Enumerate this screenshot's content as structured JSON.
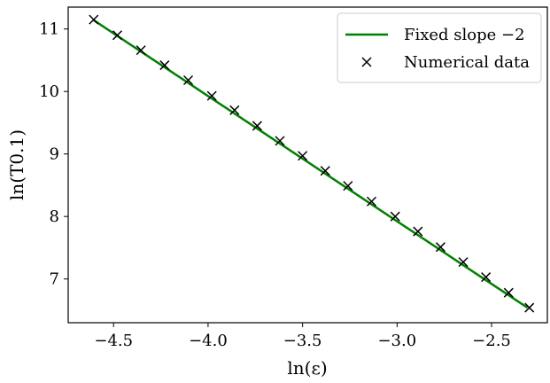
{
  "chart_data": {
    "type": "line",
    "title": "",
    "xlabel": "ln(ε)",
    "ylabel": "ln(T0.1)",
    "xlim": [
      -4.74,
      -2.205
    ],
    "ylim": [
      6.3,
      11.35
    ],
    "x_ticks": [
      -4.5,
      -4.0,
      -3.5,
      -3.0,
      -2.5
    ],
    "x_tick_labels": [
      "−4.5",
      "−4.0",
      "−3.5",
      "−3.0",
      "−2.5"
    ],
    "y_ticks": [
      7,
      8,
      9,
      10,
      11
    ],
    "y_tick_labels": [
      "7",
      "8",
      "9",
      "10",
      "11"
    ],
    "grid": false,
    "legend_position": "top-right",
    "series": [
      {
        "name": "Fixed slope −2",
        "kind": "line",
        "color": "#008000",
        "x": [
          -4.61,
          -2.31
        ],
        "y": [
          11.15,
          6.54
        ]
      },
      {
        "name": "Numerical data",
        "kind": "marker",
        "marker": "x",
        "color": "#000000",
        "x": [
          -4.605,
          -4.48,
          -4.355,
          -4.23,
          -4.105,
          -3.98,
          -3.86,
          -3.74,
          -3.62,
          -3.5,
          -3.38,
          -3.26,
          -3.135,
          -3.01,
          -2.89,
          -2.77,
          -2.65,
          -2.53,
          -2.41,
          -2.3
        ],
        "y": [
          11.15,
          10.9,
          10.66,
          10.42,
          10.18,
          9.93,
          9.7,
          9.45,
          9.21,
          8.97,
          8.73,
          8.49,
          8.24,
          8.0,
          7.76,
          7.51,
          7.27,
          7.03,
          6.78,
          6.54
        ]
      }
    ]
  }
}
